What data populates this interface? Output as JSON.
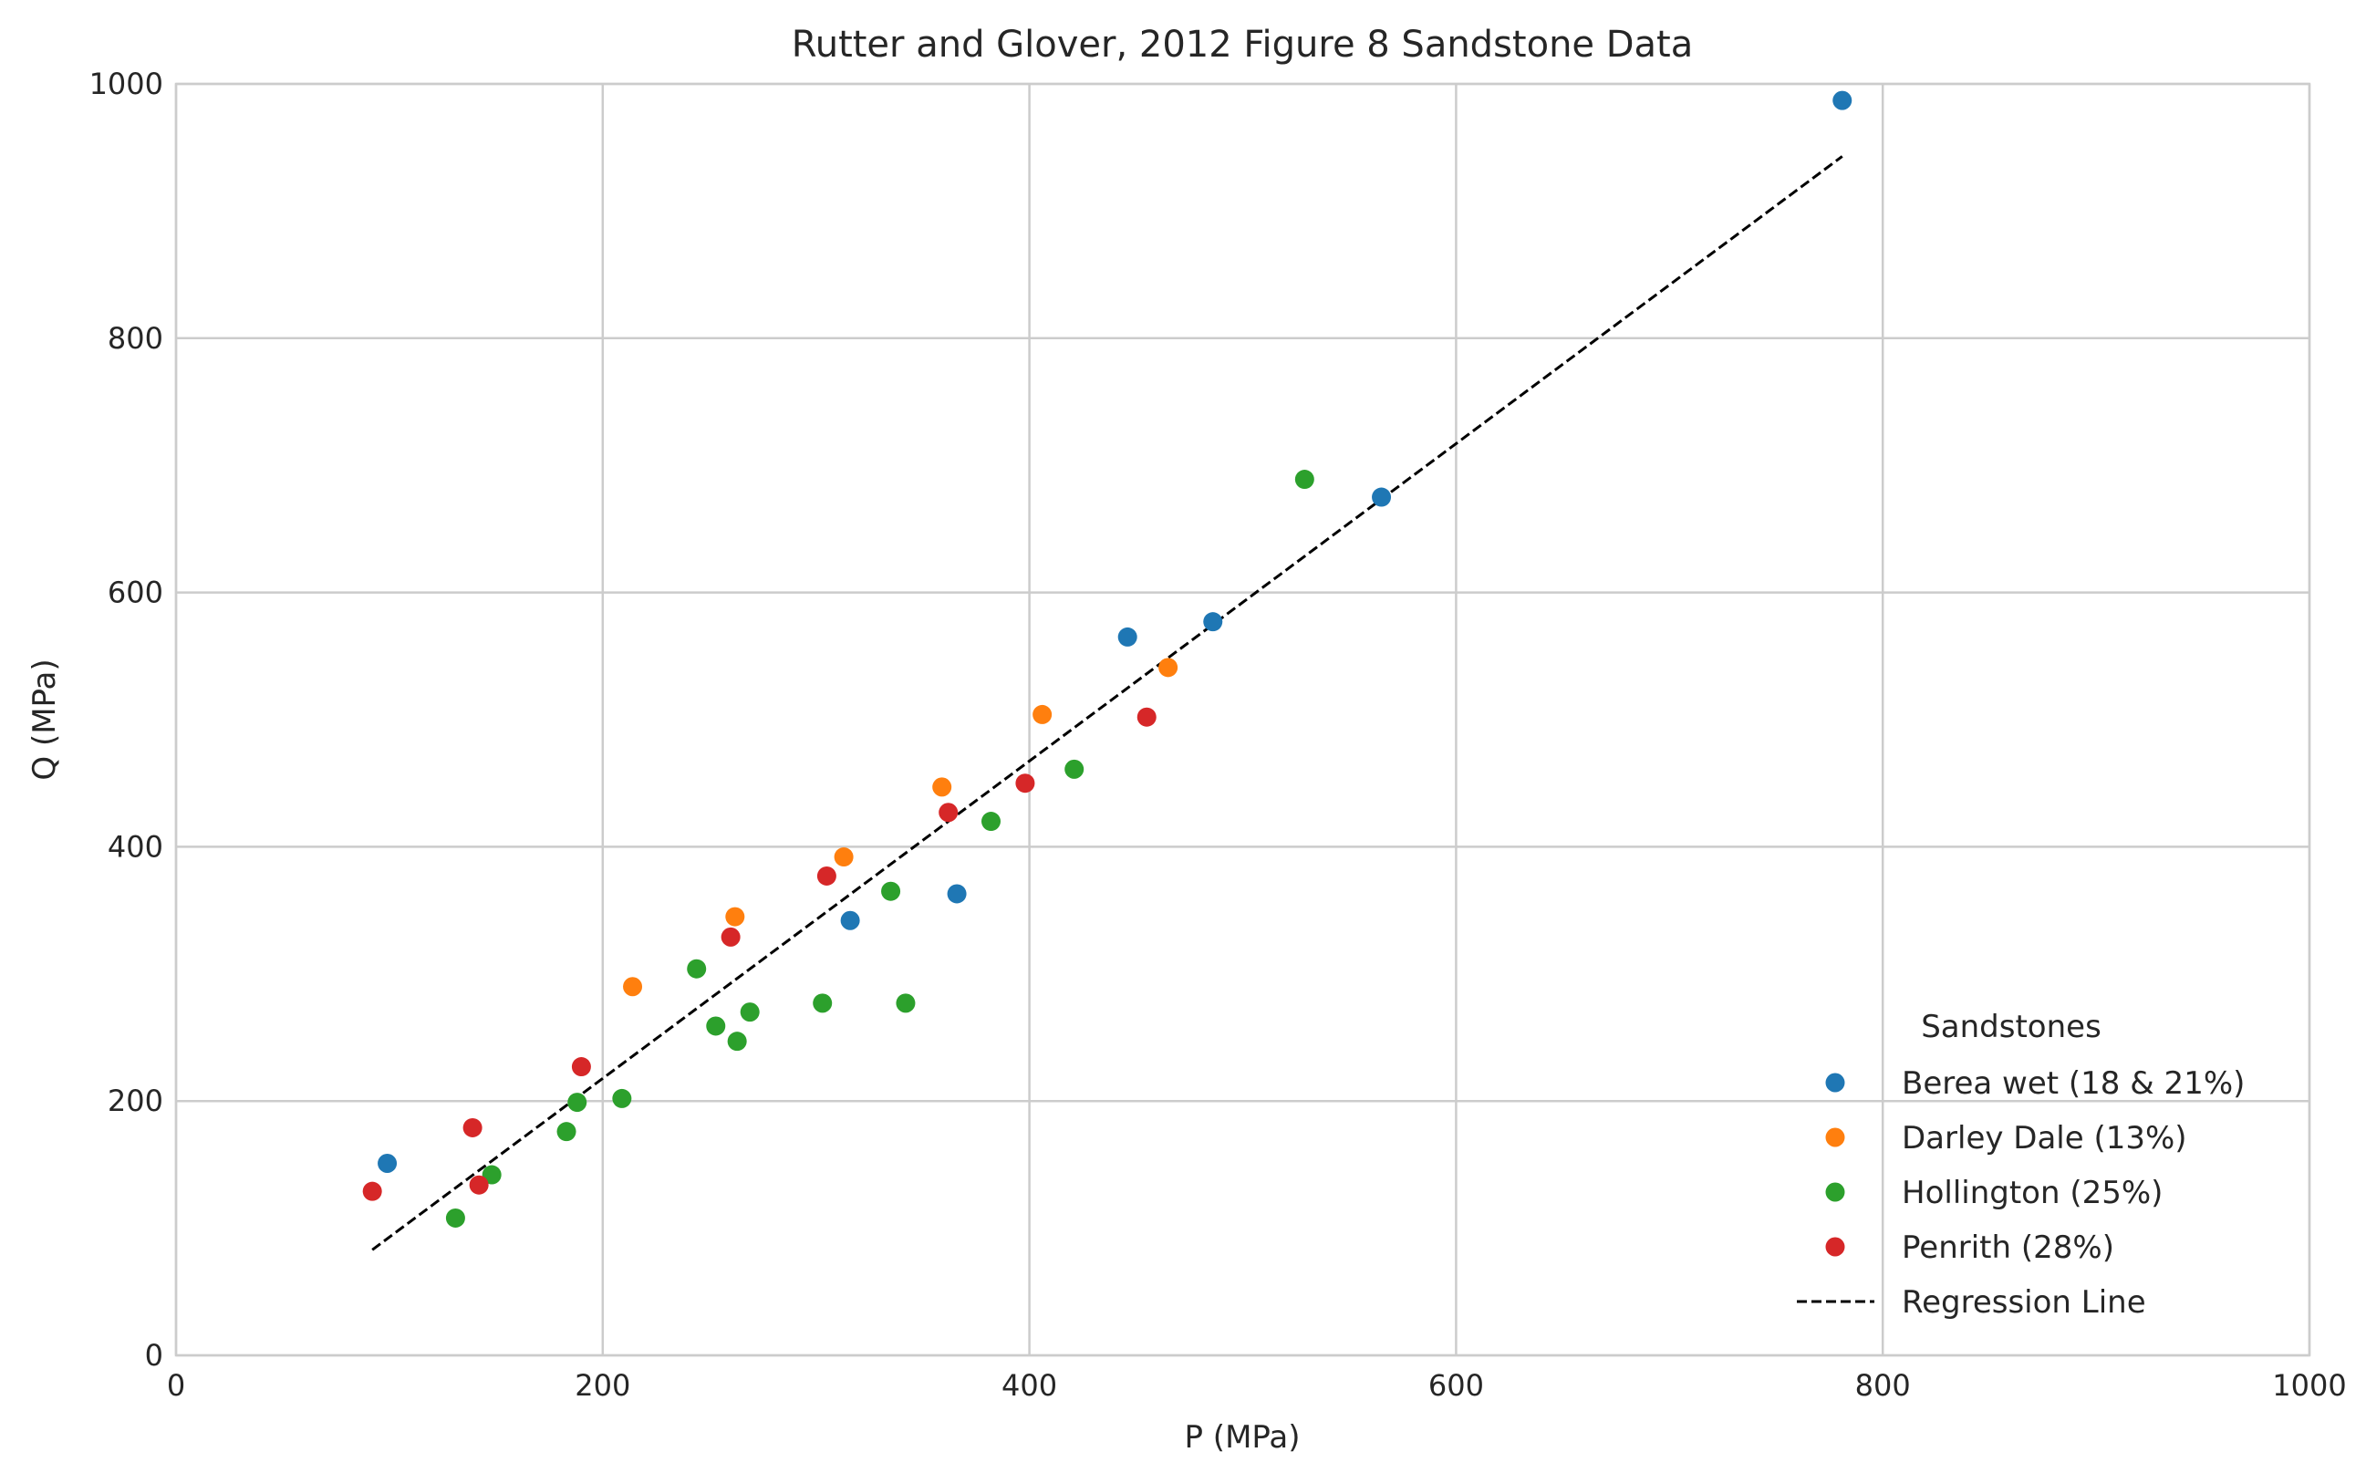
{
  "chart_data": {
    "type": "scatter",
    "title": "Rutter and Glover, 2012 Figure 8 Sandstone Data",
    "xlabel": "P (MPa)",
    "ylabel": "Q (MPa)",
    "xlim": [
      0,
      1000
    ],
    "ylim": [
      0,
      1000
    ],
    "xticks": [
      0,
      200,
      400,
      600,
      800,
      1000
    ],
    "yticks": [
      0,
      200,
      400,
      600,
      800,
      1000
    ],
    "grid": true,
    "legend": {
      "title": "Sandstones",
      "placement": "bottom-right"
    },
    "series": [
      {
        "name": "Berea wet (18 & 21%)",
        "color": "#1f77b4",
        "points": [
          [
            99,
            151
          ],
          [
            316,
            342
          ],
          [
            366,
            363
          ],
          [
            446,
            565
          ],
          [
            486,
            577
          ],
          [
            565,
            675
          ],
          [
            781,
            987
          ]
        ]
      },
      {
        "name": "Darley Dale (13%)",
        "color": "#ff7f0e",
        "points": [
          [
            214,
            290
          ],
          [
            262,
            345
          ],
          [
            313,
            392
          ],
          [
            359,
            447
          ],
          [
            406,
            504
          ],
          [
            465,
            541
          ]
        ]
      },
      {
        "name": "Hollington (25%)",
        "color": "#2ca02c",
        "points": [
          [
            131,
            108
          ],
          [
            148,
            142
          ],
          [
            183,
            176
          ],
          [
            188,
            199
          ],
          [
            209,
            202
          ],
          [
            244,
            304
          ],
          [
            253,
            259
          ],
          [
            263,
            247
          ],
          [
            269,
            270
          ],
          [
            303,
            277
          ],
          [
            335,
            365
          ],
          [
            342,
            277
          ],
          [
            382,
            420
          ],
          [
            421,
            461
          ],
          [
            529,
            689
          ]
        ]
      },
      {
        "name": "Penrith (28%)",
        "color": "#d62728",
        "points": [
          [
            92,
            129
          ],
          [
            139,
            179
          ],
          [
            142,
            134
          ],
          [
            190,
            227
          ],
          [
            260,
            329
          ],
          [
            305,
            377
          ],
          [
            362,
            427
          ],
          [
            398,
            450
          ],
          [
            455,
            502
          ]
        ]
      }
    ],
    "regression": {
      "name": "Regression Line",
      "color": "#000000",
      "points": [
        [
          92,
          83
        ],
        [
          781,
          943
        ]
      ]
    }
  }
}
